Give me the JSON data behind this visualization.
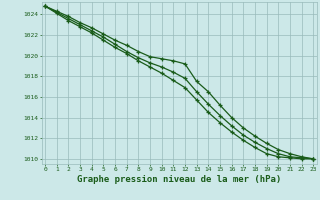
{
  "title": "Graphe pression niveau de la mer (hPa)",
  "x": [
    0,
    1,
    2,
    3,
    4,
    5,
    6,
    7,
    8,
    9,
    10,
    11,
    12,
    13,
    14,
    15,
    16,
    17,
    18,
    19,
    20,
    21,
    22,
    23
  ],
  "line1": [
    1024.8,
    1024.3,
    1023.8,
    1023.2,
    1022.7,
    1022.1,
    1021.5,
    1021.0,
    1020.4,
    1019.9,
    1019.7,
    1019.5,
    1019.2,
    1017.5,
    1016.5,
    1015.2,
    1014.0,
    1013.0,
    1012.2,
    1011.5,
    1010.9,
    1010.5,
    1010.2,
    1010.0
  ],
  "line2": [
    1024.8,
    1024.2,
    1023.6,
    1023.0,
    1022.4,
    1021.8,
    1021.1,
    1020.4,
    1019.8,
    1019.3,
    1018.9,
    1018.4,
    1017.8,
    1016.5,
    1015.3,
    1014.2,
    1013.2,
    1012.3,
    1011.6,
    1011.0,
    1010.5,
    1010.2,
    1010.1,
    1010.0
  ],
  "line3": [
    1024.8,
    1024.1,
    1023.4,
    1022.8,
    1022.2,
    1021.5,
    1020.8,
    1020.2,
    1019.5,
    1018.9,
    1018.3,
    1017.6,
    1016.9,
    1015.7,
    1014.5,
    1013.5,
    1012.6,
    1011.8,
    1011.1,
    1010.5,
    1010.2,
    1010.1,
    1010.0,
    1010.0
  ],
  "ylim": [
    1009.5,
    1025.2
  ],
  "yticks": [
    1010,
    1012,
    1014,
    1016,
    1018,
    1020,
    1022,
    1024
  ],
  "xlim": [
    -0.3,
    23.3
  ],
  "bg_color": "#cce8e8",
  "line_color": "#1a5c1a",
  "grid_color": "#99bbbb",
  "title_color": "#1a5c1a",
  "title_fontsize": 6.5,
  "tick_fontsize": 4.5
}
